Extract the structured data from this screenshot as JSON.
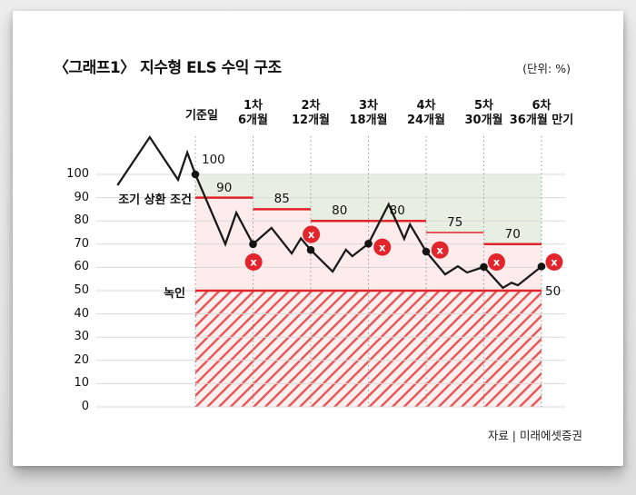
{
  "page": {
    "title": "〈그래프1〉 지수형 ELS 수익 구조",
    "unit_label": "(단위: %)",
    "source_label": "자료 | 미래에셋증권"
  },
  "annotations": {
    "early_redemption": "조기 상환 조건",
    "knock_in": "녹인",
    "start_value_label": "100",
    "knock_in_value_label": "50"
  },
  "colors": {
    "red": "#e1232a",
    "marker_red": "#e2242c",
    "green_zone": "#e7efe2",
    "pink_zone": "#fdeceb",
    "hatch_bg": "#fdf1ef",
    "hatch_stripe": "#e4373c",
    "line": "#1a1a1a",
    "dot": "#141414",
    "grid": "#d9d9d9",
    "dotted": "#9a9a9a",
    "marker_glyph_color": "#ffffff"
  },
  "chart_data": {
    "type": "line",
    "title": "지수형 ELS 수익 구조",
    "unit": "%",
    "ylim": [
      0,
      100
    ],
    "grid": true,
    "y_ticks": [
      100,
      90,
      80,
      70,
      60,
      50,
      40,
      30,
      20,
      10,
      0
    ],
    "checkpoints": [
      {
        "t": 0,
        "top": "기준일",
        "bottom": "",
        "value": 100
      },
      {
        "t": 1,
        "top": "1차",
        "bottom": "6개월",
        "value": 70
      },
      {
        "t": 2,
        "top": "2차",
        "bottom": "12개월",
        "value": 67.5
      },
      {
        "t": 3,
        "top": "3차",
        "bottom": "18개월",
        "value": 70.2
      },
      {
        "t": 4,
        "top": "4차",
        "bottom": "24개월",
        "value": 66.8
      },
      {
        "t": 5,
        "top": "5차",
        "bottom": "30개월",
        "value": 60.2
      },
      {
        "t": 6,
        "top": "6차",
        "bottom": "36개월 만기",
        "value": 60.4
      }
    ],
    "barriers": [
      {
        "from": 0,
        "to": 1,
        "level": 90,
        "label": "90"
      },
      {
        "from": 1,
        "to": 2,
        "level": 85,
        "label": "85"
      },
      {
        "from": 2,
        "to": 3,
        "level": 80,
        "label": "80"
      },
      {
        "from": 3,
        "to": 4,
        "level": 80,
        "label": "80"
      },
      {
        "from": 4,
        "to": 5,
        "level": 75,
        "label": "75",
        "thin": true
      },
      {
        "from": 5,
        "to": 6,
        "level": 70,
        "label": "70"
      }
    ],
    "knock_in_level": 50,
    "fail_glyph": "x",
    "fail_markers": [
      {
        "t": 1.01,
        "value": 62.3
      },
      {
        "t": 2.01,
        "value": 74.2
      },
      {
        "t": 3.24,
        "value": 68.7
      },
      {
        "t": 4.24,
        "value": 67.5
      },
      {
        "t": 5.22,
        "value": 62.3
      },
      {
        "t": 6.22,
        "value": 62.3
      }
    ],
    "index_path": [
      [
        -1.35,
        95.3
      ],
      [
        -0.79,
        116.0
      ],
      [
        -0.3,
        97.7
      ],
      [
        -0.14,
        109.4
      ],
      [
        0,
        100
      ],
      [
        0.52,
        70.0
      ],
      [
        0.71,
        83.5
      ],
      [
        1,
        70.0
      ],
      [
        1.32,
        77.0
      ],
      [
        1.67,
        66.0
      ],
      [
        1.83,
        72.5
      ],
      [
        2,
        67.5
      ],
      [
        2.38,
        58.2
      ],
      [
        2.61,
        67.6
      ],
      [
        2.72,
        64.8
      ],
      [
        3,
        70.2
      ],
      [
        3.35,
        87.1
      ],
      [
        3.62,
        72.3
      ],
      [
        3.72,
        78.5
      ],
      [
        4,
        66.8
      ],
      [
        4.33,
        57.0
      ],
      [
        4.55,
        60.5
      ],
      [
        4.71,
        57.8
      ],
      [
        5,
        60.2
      ],
      [
        5.33,
        51.2
      ],
      [
        5.48,
        53.4
      ],
      [
        5.59,
        52.3
      ],
      [
        6,
        60.4
      ]
    ]
  }
}
